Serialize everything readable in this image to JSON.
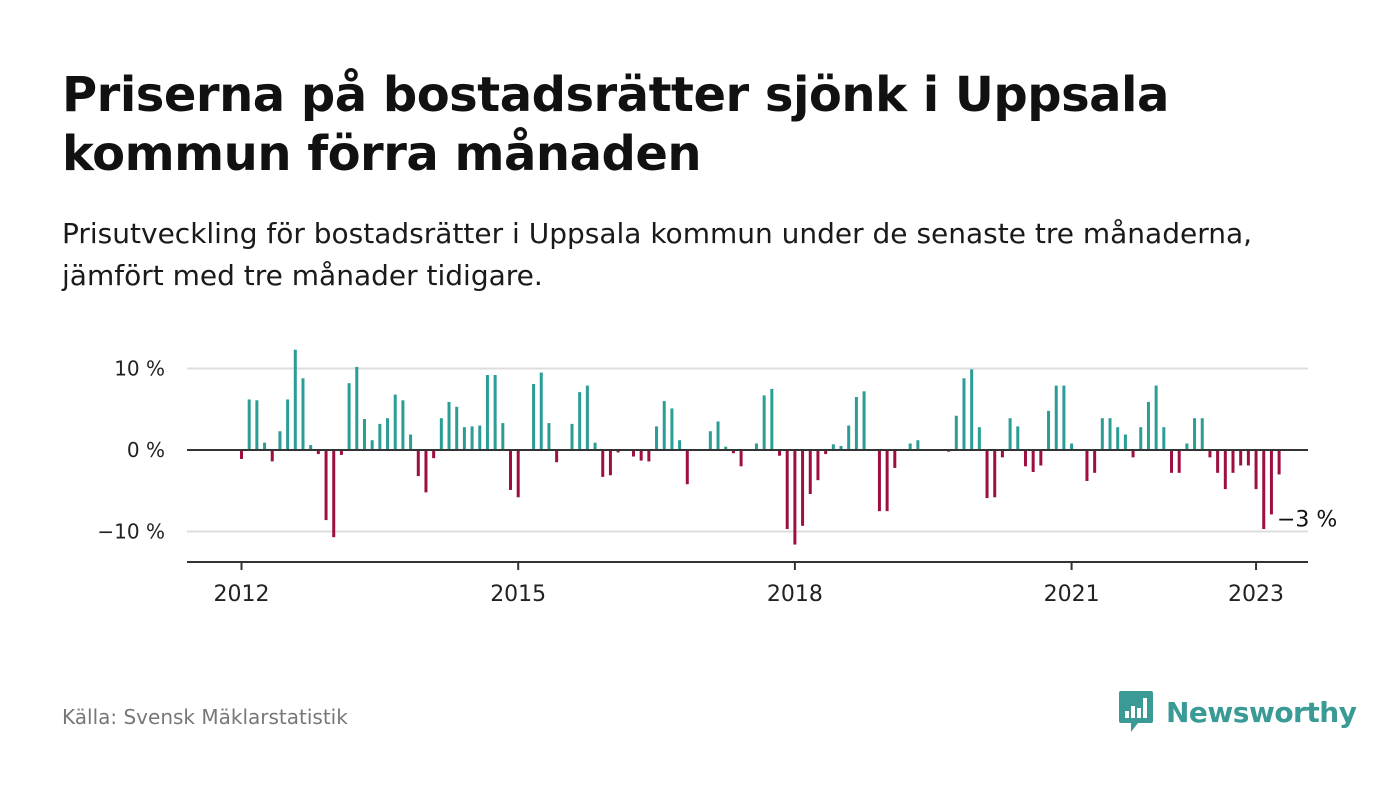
{
  "title": "Priserna på bostadsrätter sjönk i Uppsala kommun förra månaden",
  "subtitle": "Prisutveckling för bostadsrätter i Uppsala kommun under de senaste tre månaderna, jämfört med tre månader tidigare.",
  "source": "Källa: Svensk Mäklarstatistik",
  "brand": {
    "name": "Newsworthy",
    "icon": "newsworthy-logo-icon",
    "color": "#3a9a95"
  },
  "chart_data": {
    "type": "bar",
    "x_start": "2012-01",
    "x_interval": "month",
    "values": [
      -1.1,
      6.2,
      6.1,
      0.9,
      -1.4,
      2.3,
      6.2,
      12.3,
      8.8,
      0.6,
      -0.5,
      -8.6,
      -10.7,
      -0.6,
      8.2,
      10.2,
      3.8,
      1.2,
      3.2,
      3.9,
      6.8,
      6.1,
      1.9,
      -3.2,
      -5.2,
      -1.0,
      3.9,
      5.9,
      5.3,
      2.8,
      2.9,
      3.0,
      9.2,
      9.2,
      3.3,
      -4.9,
      -5.8,
      0.0,
      8.1,
      9.5,
      3.3,
      -1.5,
      0.0,
      3.2,
      7.1,
      7.9,
      0.9,
      -3.3,
      -3.1,
      -0.3,
      0.0,
      -0.8,
      -1.3,
      -1.4,
      2.9,
      6.0,
      5.1,
      1.2,
      -4.2,
      0.0,
      0.0,
      2.3,
      3.5,
      0.4,
      -0.4,
      -2.0,
      0.0,
      0.8,
      6.7,
      7.5,
      -0.7,
      -9.7,
      -11.6,
      -9.3,
      -5.4,
      -3.7,
      -0.5,
      0.7,
      0.5,
      3.0,
      6.5,
      7.2,
      0.0,
      -7.5,
      -7.5,
      -2.2,
      0.0,
      0.8,
      1.2,
      0.0,
      0.0,
      0.0,
      -0.2,
      4.2,
      8.8,
      9.9,
      2.8,
      -5.9,
      -5.8,
      -0.9,
      3.9,
      2.9,
      -2.0,
      -2.7,
      -1.9,
      4.8,
      7.9,
      7.9,
      0.8,
      0.0,
      -3.8,
      -2.8,
      3.9,
      3.9,
      2.8,
      1.9,
      -0.9,
      2.8,
      5.9,
      7.9,
      2.8,
      -2.8,
      -2.8,
      0.8,
      3.9,
      3.9,
      -0.9,
      -2.8,
      -4.8,
      -2.8,
      -1.9,
      -1.9,
      -4.8,
      -9.7,
      -7.9,
      -3.0
    ],
    "x_ticks": [
      {
        "label": "2012",
        "date": "2012-01"
      },
      {
        "label": "2015",
        "date": "2015-01"
      },
      {
        "label": "2018",
        "date": "2018-01"
      },
      {
        "label": "2021",
        "date": "2021-01"
      },
      {
        "label": "2023",
        "date": "2023-01"
      }
    ],
    "y_ticks": [
      {
        "label": "10 %",
        "value": 10
      },
      {
        "label": "0 %",
        "value": 0
      },
      {
        "label": "−10 %",
        "value": -10
      }
    ],
    "ylim": [
      -14,
      11
    ],
    "grid": true,
    "annotation": {
      "label": "−3 %",
      "date": "2023-04",
      "value": -3.0
    },
    "colors": {
      "positive": "#2a9d95",
      "negative": "#9e0e40",
      "grid": "#dddddd",
      "zero_line": "#333333",
      "axis": "#333333"
    }
  }
}
